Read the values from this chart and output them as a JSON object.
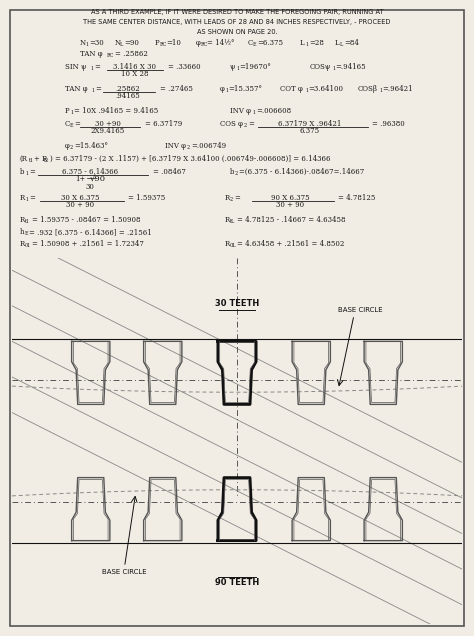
{
  "background_color": "#f2ede4",
  "border_color": "#555555",
  "text_color": "#1a1a1a",
  "title_lines": [
    "AS A THIRD EXAMPLE, IF IT WERE DESIRED TO MAKE THE FOREGOING PAIR, RUNNING AT",
    "THE SAME CENTER DISTANCE, WITH LEADS OF 28 AND 84 INCHES RESPECTIVELY, - PROCEED",
    "AS SHOWN ON PAGE 20."
  ],
  "diagram": {
    "label_30": "30 TEETH",
    "label_90": "90 TEETH",
    "label_base": "BASE CIRCLE"
  }
}
